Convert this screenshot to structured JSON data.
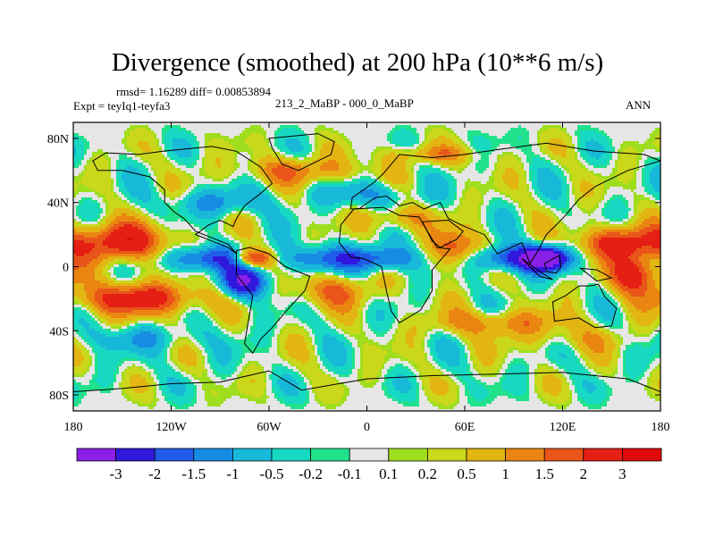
{
  "chart_data": {
    "type": "contour_map",
    "title": "Divergence (smoothed) at 200 hPa (10**6 m/s)",
    "stats_line": "rmsd= 1.16289 diff= 0.00853894",
    "rmsd": 1.16289,
    "diff": 0.00853894,
    "experiment_label": "Expt = teyIq1-teyfa3",
    "case_label": "213_2_MaBP - 000_0_MaBP",
    "season": "ANN",
    "x_ticks": [
      {
        "value": -180,
        "label": "180"
      },
      {
        "value": -120,
        "label": "120W"
      },
      {
        "value": -60,
        "label": "60W"
      },
      {
        "value": 0,
        "label": "0"
      },
      {
        "value": 60,
        "label": "60E"
      },
      {
        "value": 120,
        "label": "120E"
      },
      {
        "value": 180,
        "label": "180"
      }
    ],
    "y_ticks": [
      {
        "value": 80,
        "label": "80N"
      },
      {
        "value": 40,
        "label": "40N"
      },
      {
        "value": 0,
        "label": "0"
      },
      {
        "value": -40,
        "label": "40S"
      },
      {
        "value": -80,
        "label": "80S"
      }
    ],
    "xlim": [
      -180,
      180
    ],
    "ylim": [
      -90,
      90
    ],
    "colorbar": {
      "levels": [
        -3,
        -2,
        -1.5,
        -1,
        -0.5,
        -0.2,
        -0.1,
        0.1,
        0.2,
        0.5,
        1,
        1.5,
        2,
        3
      ],
      "labels": [
        "-3",
        "-2",
        "-1.5",
        "-1",
        "-0.5",
        "-0.2",
        "-0.1",
        "0.1",
        "0.2",
        "0.5",
        "1",
        "1.5",
        "2",
        "3"
      ],
      "colors": [
        "#8a1fe6",
        "#3018dc",
        "#1f5ce8",
        "#178ce3",
        "#18b9d8",
        "#17d8c3",
        "#21e28b",
        "#e6e6e6",
        "#9ede1e",
        "#cbd71a",
        "#e3b512",
        "#ea8512",
        "#e95518",
        "#e51f14",
        "#e00a0a"
      ]
    },
    "field_centers": [
      {
        "lon": -150,
        "lat": 15,
        "value": 2.6,
        "spread_lon": 30,
        "spread_lat": 12
      },
      {
        "lon": -140,
        "lat": -20,
        "value": 2.4,
        "spread_lon": 40,
        "spread_lat": 10
      },
      {
        "lon": -100,
        "lat": 5,
        "value": -2.2,
        "spread_lon": 25,
        "spread_lat": 8
      },
      {
        "lon": -75,
        "lat": -10,
        "value": -2.8,
        "spread_lon": 15,
        "spread_lat": 10
      },
      {
        "lon": -70,
        "lat": 5,
        "value": 2.7,
        "spread_lon": 12,
        "spread_lat": 6
      },
      {
        "lon": -30,
        "lat": 5,
        "value": -1.6,
        "spread_lon": 25,
        "spread_lat": 8
      },
      {
        "lon": -20,
        "lat": -15,
        "value": 1.4,
        "spread_lon": 25,
        "spread_lat": 10
      },
      {
        "lon": 10,
        "lat": 5,
        "value": -2.0,
        "spread_lon": 20,
        "spread_lat": 8
      },
      {
        "lon": 20,
        "lat": 30,
        "value": 1.2,
        "spread_lon": 20,
        "spread_lat": 8
      },
      {
        "lon": 55,
        "lat": 10,
        "value": 2.2,
        "spread_lon": 15,
        "spread_lat": 12
      },
      {
        "lon": 90,
        "lat": 5,
        "value": -2.5,
        "spread_lon": 30,
        "spread_lat": 8
      },
      {
        "lon": 110,
        "lat": 5,
        "value": -3.2,
        "spread_lon": 12,
        "spread_lat": 7
      },
      {
        "lon": 155,
        "lat": 15,
        "value": 2.4,
        "spread_lon": 25,
        "spread_lat": 10
      },
      {
        "lon": 165,
        "lat": -5,
        "value": 2.6,
        "spread_lon": 15,
        "spread_lat": 12
      },
      {
        "lon": -90,
        "lat": 40,
        "value": -1.1,
        "spread_lon": 30,
        "spread_lat": 8
      },
      {
        "lon": 0,
        "lat": 45,
        "value": -1.0,
        "spread_lon": 30,
        "spread_lat": 8
      },
      {
        "lon": 80,
        "lat": -35,
        "value": 1.3,
        "spread_lon": 40,
        "spread_lat": 8
      },
      {
        "lon": -40,
        "lat": 60,
        "value": 1.3,
        "spread_lon": 40,
        "spread_lat": 8
      },
      {
        "lon": 40,
        "lat": 70,
        "value": 1.0,
        "spread_lon": 30,
        "spread_lat": 6
      },
      {
        "lon": -140,
        "lat": -45,
        "value": -0.8,
        "spread_lon": 40,
        "spread_lat": 8
      },
      {
        "lon": 130,
        "lat": -45,
        "value": 0.6,
        "spread_lon": 40,
        "spread_lat": 8
      }
    ],
    "colormap": "blue-green-white-yellow-red (NCL amwg-style)"
  }
}
